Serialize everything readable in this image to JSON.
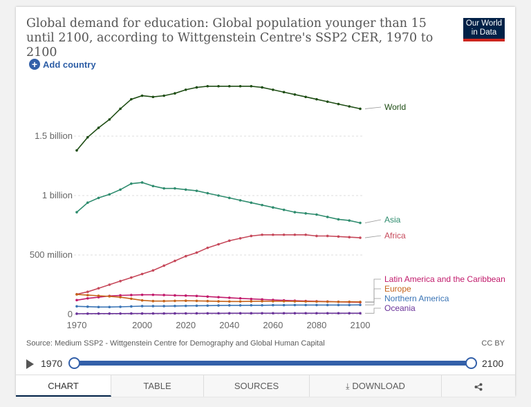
{
  "header": {
    "title": "Global demand for education: Global population younger than 15 until 2100, according to Wittgenstein Centre's SSP2 CER, 1970 to 2100",
    "logo_line1": "Our World",
    "logo_line2": "in Data",
    "add_country": "Add country"
  },
  "colors": {
    "world": "#1e4d14",
    "asia": "#2e8c6e",
    "africa": "#c6485a",
    "latam": "#c11a6b",
    "europe": "#c5631a",
    "northern_america": "#3a74b5",
    "oceania": "#6a3399",
    "accent": "#3360a9",
    "brand": "#002147"
  },
  "chart_data": {
    "type": "line",
    "title": "Global demand for education: Global population younger than 15 until 2100, according to Wittgenstein Centre's SSP2 CER, 1970 to 2100",
    "x_ticks": [
      1970,
      2000,
      2020,
      2040,
      2060,
      2080,
      2100
    ],
    "y_ticks": [
      {
        "value": 0,
        "label": "0"
      },
      {
        "value": 500000000,
        "label": "500 million"
      },
      {
        "value": 1000000000,
        "label": "1 billion"
      },
      {
        "value": 1500000000,
        "label": "1.5 billion"
      }
    ],
    "xlim": [
      1970,
      2100
    ],
    "ylim": [
      0,
      1950000000
    ],
    "grid": "horizontal dashed",
    "legend": "right, inline labels",
    "x": [
      1970,
      1975,
      1980,
      1985,
      1990,
      1995,
      2000,
      2005,
      2010,
      2015,
      2020,
      2025,
      2030,
      2035,
      2040,
      2045,
      2050,
      2055,
      2060,
      2065,
      2070,
      2075,
      2080,
      2085,
      2090,
      2095,
      2100
    ],
    "series": [
      {
        "name": "World",
        "color_key": "world",
        "values": [
          1380000000,
          1490000000,
          1570000000,
          1640000000,
          1730000000,
          1810000000,
          1840000000,
          1830000000,
          1840000000,
          1860000000,
          1890000000,
          1910000000,
          1920000000,
          1920000000,
          1920000000,
          1920000000,
          1920000000,
          1910000000,
          1890000000,
          1870000000,
          1850000000,
          1830000000,
          1810000000,
          1790000000,
          1770000000,
          1750000000,
          1730000000
        ]
      },
      {
        "name": "Asia",
        "color_key": "asia",
        "values": [
          860000000,
          940000000,
          980000000,
          1010000000,
          1050000000,
          1100000000,
          1110000000,
          1080000000,
          1060000000,
          1060000000,
          1050000000,
          1040000000,
          1020000000,
          1000000000,
          980000000,
          960000000,
          940000000,
          920000000,
          900000000,
          880000000,
          860000000,
          850000000,
          840000000,
          820000000,
          800000000,
          790000000,
          770000000
        ]
      },
      {
        "name": "Africa",
        "color_key": "africa",
        "values": [
          170000000,
          190000000,
          220000000,
          250000000,
          280000000,
          310000000,
          340000000,
          370000000,
          410000000,
          450000000,
          490000000,
          520000000,
          560000000,
          590000000,
          620000000,
          640000000,
          660000000,
          670000000,
          670000000,
          670000000,
          670000000,
          670000000,
          660000000,
          660000000,
          655000000,
          650000000,
          645000000
        ]
      },
      {
        "name": "Latin America and the Caribbean",
        "color_key": "latam",
        "values": [
          120000000,
          135000000,
          145000000,
          155000000,
          160000000,
          163000000,
          165000000,
          165000000,
          163000000,
          160000000,
          158000000,
          155000000,
          150000000,
          145000000,
          140000000,
          135000000,
          130000000,
          126000000,
          122000000,
          118000000,
          115000000,
          112000000,
          110000000,
          108000000,
          106000000,
          104000000,
          102000000
        ]
      },
      {
        "name": "Europe",
        "color_key": "europe",
        "values": [
          168000000,
          162000000,
          157000000,
          152000000,
          145000000,
          132000000,
          118000000,
          112000000,
          112000000,
          114000000,
          115000000,
          114000000,
          112000000,
          110000000,
          109000000,
          109000000,
          110000000,
          111000000,
          111000000,
          111000000,
          110000000,
          109000000,
          108000000,
          107000000,
          106000000,
          106000000,
          105000000
        ]
      },
      {
        "name": "Northern America",
        "color_key": "northern_america",
        "values": [
          68000000,
          65000000,
          62000000,
          62000000,
          64000000,
          67000000,
          70000000,
          70000000,
          70000000,
          71000000,
          72000000,
          73000000,
          74000000,
          75000000,
          76000000,
          76000000,
          77000000,
          77000000,
          78000000,
          78000000,
          79000000,
          79000000,
          79000000,
          79000000,
          79000000,
          79000000,
          80000000
        ]
      },
      {
        "name": "Oceania",
        "color_key": "oceania",
        "values": [
          6000000,
          6500000,
          7000000,
          7000000,
          7200000,
          7400000,
          7600000,
          7800000,
          8000000,
          8300000,
          8600000,
          8900000,
          9200000,
          9400000,
          9600000,
          9700000,
          9800000,
          9900000,
          10000000,
          10000000,
          10000000,
          10000000,
          10000000,
          10000000,
          10000000,
          9900000,
          9800000
        ]
      }
    ]
  },
  "footer": {
    "source": "Source: Medium SSP2 - Wittgenstein Centre for Demography and Global Human Capital",
    "license": "CC BY",
    "timeline_start": "1970",
    "timeline_end": "2100"
  },
  "tabs": [
    "CHART",
    "TABLE",
    "SOURCES",
    "DOWNLOAD"
  ],
  "share_icon": "share-icon",
  "play_icon": "play-icon"
}
